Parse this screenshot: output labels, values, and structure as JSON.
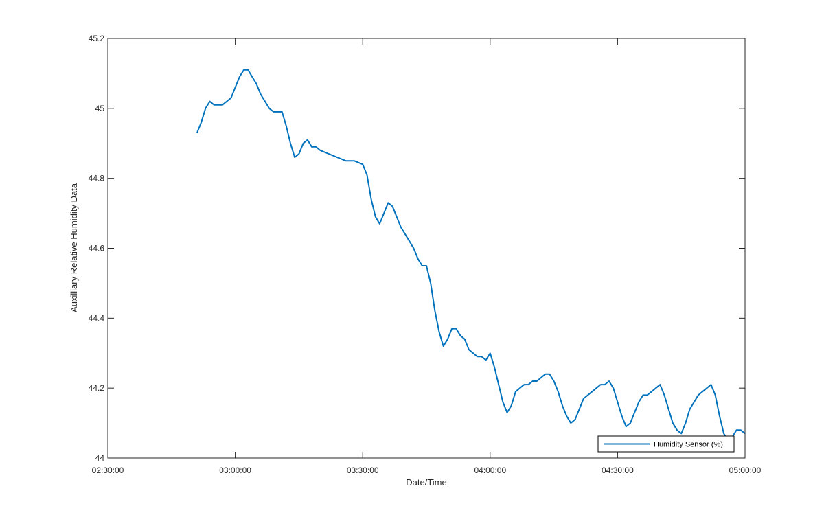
{
  "chart_data": {
    "type": "line",
    "title": "",
    "xlabel": "Date/Time",
    "ylabel": "Auxilliary Relative Humidity Data",
    "xlim": [
      "02:30:00",
      "05:00:00"
    ],
    "ylim": [
      44,
      45.2
    ],
    "x_ticks": [
      "02:30:00",
      "03:00:00",
      "03:30:00",
      "04:00:00",
      "04:30:00",
      "05:00:00"
    ],
    "y_ticks": [
      "44",
      "44.2",
      "44.4",
      "44.6",
      "44.8",
      "45",
      "45.2"
    ],
    "grid": false,
    "legend_position": "bottom-right",
    "series": [
      {
        "name": "Humidity Sensor (%)",
        "color": "#0072BD",
        "x": [
          "02:51:00",
          "02:52:00",
          "02:53:00",
          "02:54:00",
          "02:55:00",
          "02:56:00",
          "02:57:00",
          "02:58:00",
          "02:59:00",
          "03:00:00",
          "03:01:00",
          "03:02:00",
          "03:03:00",
          "03:04:00",
          "03:05:00",
          "03:06:00",
          "03:07:00",
          "03:08:00",
          "03:09:00",
          "03:10:00",
          "03:11:00",
          "03:12:00",
          "03:13:00",
          "03:14:00",
          "03:15:00",
          "03:16:00",
          "03:17:00",
          "03:18:00",
          "03:19:00",
          "03:20:00",
          "03:22:00",
          "03:24:00",
          "03:26:00",
          "03:28:00",
          "03:30:00",
          "03:31:00",
          "03:32:00",
          "03:33:00",
          "03:34:00",
          "03:35:00",
          "03:36:00",
          "03:37:00",
          "03:38:00",
          "03:39:00",
          "03:40:00",
          "03:41:00",
          "03:42:00",
          "03:43:00",
          "03:44:00",
          "03:45:00",
          "03:46:00",
          "03:47:00",
          "03:48:00",
          "03:49:00",
          "03:50:00",
          "03:51:00",
          "03:52:00",
          "03:53:00",
          "03:54:00",
          "03:55:00",
          "03:56:00",
          "03:57:00",
          "03:58:00",
          "03:59:00",
          "04:00:00",
          "04:01:00",
          "04:02:00",
          "04:03:00",
          "04:04:00",
          "04:05:00",
          "04:06:00",
          "04:07:00",
          "04:08:00",
          "04:09:00",
          "04:10:00",
          "04:11:00",
          "04:12:00",
          "04:13:00",
          "04:14:00",
          "04:15:00",
          "04:16:00",
          "04:17:00",
          "04:18:00",
          "04:19:00",
          "04:20:00",
          "04:21:00",
          "04:22:00",
          "04:23:00",
          "04:24:00",
          "04:25:00",
          "04:26:00",
          "04:27:00",
          "04:28:00",
          "04:29:00",
          "04:30:00",
          "04:31:00",
          "04:32:00",
          "04:33:00",
          "04:34:00",
          "04:35:00",
          "04:36:00",
          "04:37:00",
          "04:38:00",
          "04:39:00",
          "04:40:00",
          "04:41:00",
          "04:42:00",
          "04:43:00",
          "04:44:00",
          "04:45:00",
          "04:46:00",
          "04:47:00",
          "04:48:00",
          "04:49:00",
          "04:50:00",
          "04:51:00",
          "04:52:00",
          "04:53:00",
          "04:54:00",
          "04:55:00",
          "04:56:00",
          "04:57:00",
          "04:58:00",
          "04:59:00",
          "05:00:00"
        ],
        "y": [
          44.93,
          44.96,
          45.0,
          45.02,
          45.01,
          45.01,
          45.01,
          45.02,
          45.03,
          45.06,
          45.09,
          45.11,
          45.11,
          45.09,
          45.07,
          45.04,
          45.02,
          45.0,
          44.99,
          44.99,
          44.99,
          44.95,
          44.9,
          44.86,
          44.87,
          44.9,
          44.91,
          44.89,
          44.89,
          44.88,
          44.87,
          44.86,
          44.85,
          44.85,
          44.84,
          44.81,
          44.74,
          44.69,
          44.67,
          44.7,
          44.73,
          44.72,
          44.69,
          44.66,
          44.64,
          44.62,
          44.6,
          44.57,
          44.55,
          44.55,
          44.5,
          44.42,
          44.36,
          44.32,
          44.34,
          44.37,
          44.37,
          44.35,
          44.34,
          44.31,
          44.3,
          44.29,
          44.29,
          44.28,
          44.3,
          44.26,
          44.21,
          44.16,
          44.13,
          44.15,
          44.19,
          44.2,
          44.21,
          44.21,
          44.22,
          44.22,
          44.23,
          44.24,
          44.24,
          44.22,
          44.19,
          44.15,
          44.12,
          44.1,
          44.11,
          44.14,
          44.17,
          44.18,
          44.19,
          44.2,
          44.21,
          44.21,
          44.22,
          44.2,
          44.16,
          44.12,
          44.09,
          44.1,
          44.13,
          44.16,
          44.18,
          44.18,
          44.19,
          44.2,
          44.21,
          44.18,
          44.14,
          44.1,
          44.08,
          44.07,
          44.1,
          44.14,
          44.16,
          44.18,
          44.19,
          44.2,
          44.21,
          44.18,
          44.12,
          44.07,
          44.05,
          44.06,
          44.08,
          44.08,
          44.07
        ]
      }
    ]
  }
}
